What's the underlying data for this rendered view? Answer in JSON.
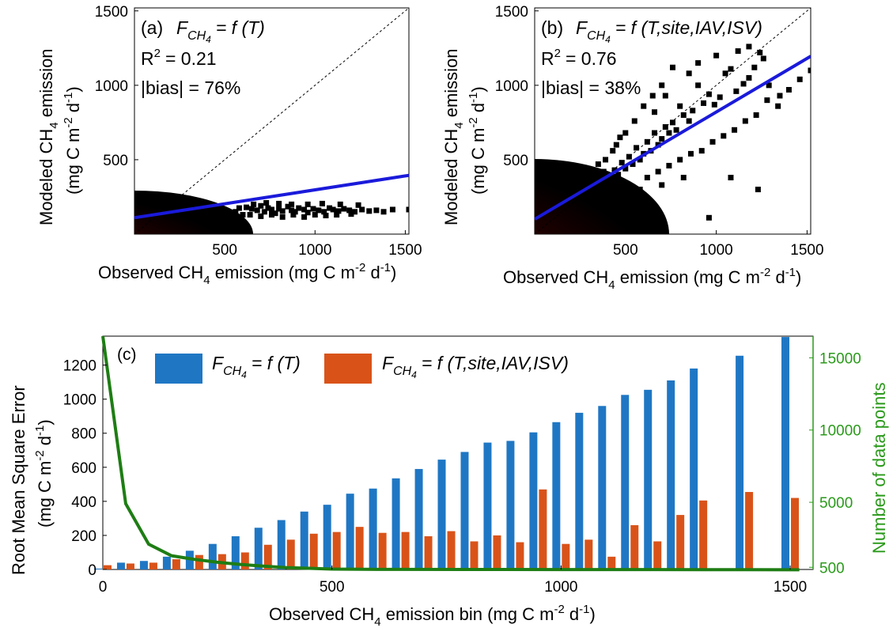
{
  "colors": {
    "fit_line": "#1a1adb",
    "one_to_one": "#000000",
    "bar_t": "#1f77c4",
    "bar_full": "#d95319",
    "count_line": "#1e7d14",
    "count_axis": "#2a9a1a",
    "points": "#000000"
  },
  "chart_data": [
    {
      "type": "scatter",
      "panel": "(a)",
      "formula_lhs": "F",
      "formula_sub": "CH",
      "formula_subsub": "4",
      "formula_rhs": "= f (T)",
      "r2_label": "R",
      "r2_sup": "2",
      "r2_value": "= 0.21",
      "bias": "|bias| = 76%",
      "xlabel": {
        "main": "Observed CH",
        "sub": "4",
        "rest": " emission (mg C m",
        "sup1": "-2",
        "mid": " d",
        "sup2": "-1",
        "end": ")"
      },
      "ylabel": {
        "main": "Modeled CH",
        "sub": "4",
        "rest": " emission",
        "line2": "(mg C m",
        "sup1": "-2",
        "mid": " d",
        "sup2": "-1",
        "end": ")"
      },
      "xlim": [
        0,
        1520
      ],
      "ylim": [
        0,
        1520
      ],
      "xticks": [
        "500",
        "1000",
        "1500"
      ],
      "xtick_values": [
        500,
        1000,
        1500
      ],
      "yticks": [
        "500",
        "1000",
        "1500"
      ],
      "ytick_values": [
        500,
        1000,
        1500
      ],
      "fit_line": {
        "x": [
          0,
          1520
        ],
        "y": [
          110,
          395
        ]
      },
      "one_to_one": true,
      "points": [
        [
          620,
          180
        ],
        [
          650,
          170
        ],
        [
          680,
          160
        ],
        [
          700,
          190
        ],
        [
          720,
          150
        ],
        [
          740,
          175
        ],
        [
          760,
          165
        ],
        [
          780,
          140
        ],
        [
          800,
          170
        ],
        [
          820,
          155
        ],
        [
          850,
          185
        ],
        [
          870,
          160
        ],
        [
          890,
          150
        ],
        [
          910,
          175
        ],
        [
          940,
          165
        ],
        [
          960,
          145
        ],
        [
          990,
          170
        ],
        [
          1020,
          160
        ],
        [
          1050,
          150
        ],
        [
          1080,
          175
        ],
        [
          1100,
          165
        ],
        [
          1130,
          155
        ],
        [
          1160,
          170
        ],
        [
          1190,
          160
        ],
        [
          1220,
          150
        ],
        [
          1260,
          165
        ],
        [
          1300,
          155
        ],
        [
          1340,
          160
        ],
        [
          1380,
          150
        ],
        [
          1430,
          165
        ],
        [
          1520,
          165
        ],
        [
          560,
          150
        ],
        [
          580,
          175
        ],
        [
          600,
          130
        ],
        [
          640,
          130
        ],
        [
          700,
          120
        ],
        [
          760,
          130
        ],
        [
          820,
          115
        ],
        [
          880,
          130
        ],
        [
          940,
          115
        ],
        [
          1000,
          130
        ],
        [
          1060,
          125
        ],
        [
          1120,
          130
        ],
        [
          1200,
          135
        ],
        [
          660,
          200
        ],
        [
          730,
          210
        ],
        [
          800,
          205
        ],
        [
          870,
          200
        ],
        [
          960,
          200
        ],
        [
          1040,
          205
        ],
        [
          1140,
          200
        ],
        [
          1240,
          195
        ]
      ]
    },
    {
      "type": "scatter",
      "panel": "(b)",
      "formula_lhs": "F",
      "formula_sub": "CH",
      "formula_subsub": "4",
      "formula_rhs": "= f (T,site,IAV,ISV)",
      "r2_label": "R",
      "r2_sup": "2",
      "r2_value": "= 0.76",
      "bias": "|bias| = 38%",
      "xlabel": {
        "main": "Observed CH",
        "sub": "4",
        "rest": " emission (mg C m",
        "sup1": "-2",
        "mid": " d",
        "sup2": "-1",
        "end": ")"
      },
      "ylabel": {
        "main": "Modeled CH",
        "sub": "4",
        "rest": " emission",
        "line2": "(mg C m",
        "sup1": "-2",
        "mid": " d",
        "sup2": "-1",
        "end": ")"
      },
      "xlim": [
        0,
        1520
      ],
      "ylim": [
        0,
        1520
      ],
      "xticks": [
        "500",
        "1000",
        "1500"
      ],
      "xtick_values": [
        500,
        1000,
        1500
      ],
      "yticks": [
        "500",
        "1000",
        "1500"
      ],
      "ytick_values": [
        500,
        1000,
        1500
      ],
      "fit_line": {
        "x": [
          0,
          1520
        ],
        "y": [
          100,
          1195
        ]
      },
      "one_to_one": true,
      "points": [
        [
          1520,
          1100
        ],
        [
          1460,
          1040
        ],
        [
          1400,
          970
        ],
        [
          1350,
          930
        ],
        [
          1290,
          1000
        ],
        [
          1260,
          1180
        ],
        [
          1240,
          1220
        ],
        [
          1210,
          1120
        ],
        [
          1180,
          1050
        ],
        [
          1150,
          1010
        ],
        [
          1110,
          960
        ],
        [
          1080,
          1110
        ],
        [
          1050,
          1080
        ],
        [
          1020,
          920
        ],
        [
          990,
          870
        ],
        [
          960,
          940
        ],
        [
          930,
          880
        ],
        [
          900,
          1000
        ],
        [
          870,
          830
        ],
        [
          850,
          760
        ],
        [
          820,
          800
        ],
        [
          800,
          860
        ],
        [
          780,
          700
        ],
        [
          760,
          750
        ],
        [
          740,
          680
        ],
        [
          720,
          720
        ],
        [
          700,
          640
        ],
        [
          680,
          600
        ],
        [
          660,
          680
        ],
        [
          640,
          560
        ],
        [
          620,
          620
        ],
        [
          600,
          540
        ],
        [
          580,
          500
        ],
        [
          560,
          580
        ],
        [
          540,
          470
        ],
        [
          520,
          520
        ],
        [
          500,
          440
        ],
        [
          480,
          480
        ],
        [
          460,
          400
        ],
        [
          440,
          430
        ],
        [
          420,
          380
        ],
        [
          400,
          360
        ],
        [
          380,
          420
        ],
        [
          360,
          330
        ],
        [
          340,
          300
        ],
        [
          320,
          350
        ],
        [
          300,
          280
        ],
        [
          600,
          860
        ],
        [
          650,
          930
        ],
        [
          700,
          1000
        ],
        [
          550,
          760
        ],
        [
          500,
          680
        ],
        [
          450,
          600
        ],
        [
          620,
          380
        ],
        [
          680,
          420
        ],
        [
          740,
          460
        ],
        [
          800,
          500
        ],
        [
          860,
          540
        ],
        [
          920,
          560
        ],
        [
          980,
          620
        ],
        [
          1040,
          660
        ],
        [
          1100,
          700
        ],
        [
          1160,
          760
        ],
        [
          1220,
          800
        ],
        [
          1280,
          900
        ],
        [
          1340,
          860
        ],
        [
          580,
          300
        ],
        [
          700,
          330
        ],
        [
          820,
          380
        ],
        [
          960,
          110
        ],
        [
          1230,
          300
        ],
        [
          1080,
          380
        ],
        [
          760,
          1120
        ],
        [
          900,
          1150
        ],
        [
          1000,
          1200
        ],
        [
          1120,
          1230
        ],
        [
          1180,
          1260
        ],
        [
          850,
          1080
        ],
        [
          720,
          930
        ],
        [
          660,
          820
        ],
        [
          470,
          650
        ],
        [
          430,
          560
        ],
        [
          390,
          500
        ],
        [
          350,
          470
        ]
      ]
    },
    {
      "type": "bar",
      "panel": "(c)",
      "categories": [
        0,
        50,
        100,
        150,
        200,
        250,
        300,
        350,
        400,
        450,
        500,
        550,
        600,
        650,
        700,
        750,
        800,
        850,
        900,
        950,
        1000,
        1050,
        1100,
        1150,
        1200,
        1250,
        1300,
        1400,
        1500
      ],
      "series": [
        {
          "name": "F_CH4 = f (T)",
          "legend_lhs": "F",
          "legend_sub": "CH",
          "legend_subsub": "4",
          "legend_rhs": "= f (T)",
          "values": [
            5,
            40,
            50,
            75,
            110,
            150,
            195,
            245,
            290,
            340,
            380,
            445,
            475,
            535,
            590,
            645,
            690,
            745,
            755,
            805,
            865,
            920,
            960,
            1025,
            1055,
            1110,
            1180,
            1255,
            1365
          ]
        },
        {
          "name": "F_CH4 = f (T,site,IAV,ISV)",
          "legend_lhs": "F",
          "legend_sub": "CH",
          "legend_subsub": "4",
          "legend_rhs": "= f (T,site,IAV,ISV)",
          "values": [
            25,
            35,
            40,
            60,
            85,
            90,
            100,
            145,
            175,
            210,
            220,
            250,
            215,
            220,
            195,
            225,
            165,
            200,
            160,
            470,
            150,
            175,
            75,
            260,
            165,
            320,
            405,
            455,
            420
          ]
        }
      ],
      "count_line": {
        "x": [
          0,
          50,
          100,
          150,
          200,
          250,
          300,
          350,
          400,
          450,
          500,
          600,
          800,
          1000,
          1200,
          1400,
          1520
        ],
        "y": [
          16500,
          4900,
          2100,
          1300,
          1050,
          850,
          700,
          580,
          480,
          430,
          380,
          360,
          350,
          345,
          340,
          335,
          330
        ]
      },
      "ylim": [
        0,
        1370
      ],
      "xlim": [
        0,
        1550
      ],
      "y2lim": [
        350,
        16500
      ],
      "xticks": [
        "0",
        "500",
        "1000",
        "1500"
      ],
      "xtick_values": [
        0,
        500,
        1000,
        1500
      ],
      "yticks": [
        "0",
        "200",
        "400",
        "600",
        "800",
        "1000",
        "1200"
      ],
      "ytick_values": [
        0,
        200,
        400,
        600,
        800,
        1000,
        1200
      ],
      "y2ticks": [
        "500",
        "5000",
        "10000",
        "15000"
      ],
      "y2tick_values": [
        500,
        5000,
        10000,
        15000
      ],
      "xlabel": {
        "main": "Observed CH",
        "sub": "4",
        "rest": " emission bin (mg C m",
        "sup1": "-2",
        "mid": " d",
        "sup2": "-1",
        "end": ")"
      },
      "ylabel": {
        "line1": "Root Mean Square Error",
        "line2": "(mg C m",
        "sup1": "-2",
        "mid": " d",
        "sup2": "-1",
        "end": ")"
      },
      "y2label": "Number of data points"
    }
  ]
}
